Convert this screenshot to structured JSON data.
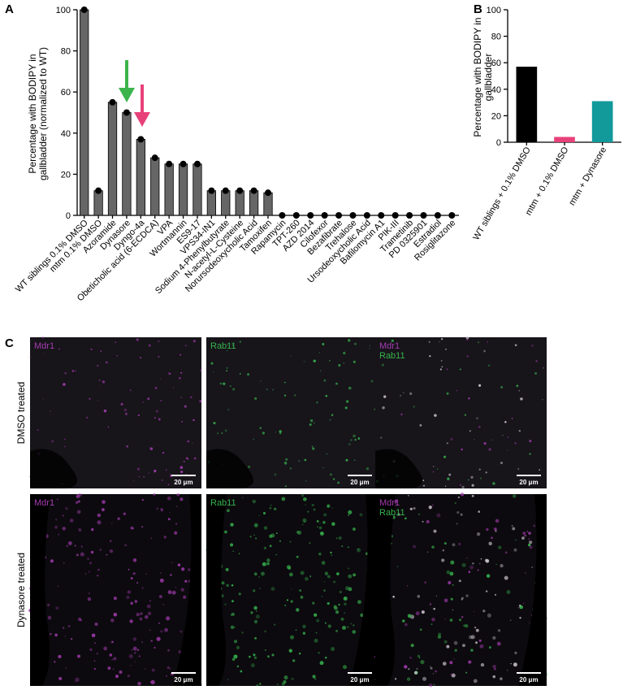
{
  "panel_labels": [
    "A",
    "B",
    "C"
  ],
  "chart_data": [
    {
      "type": "bar",
      "ylabel": [
        "Percentage with BODIPY in",
        "gallbladder (normalized to WT)"
      ],
      "categories": [
        "WT siblings 0.1% DMSO",
        "mtm 0.1% DMSO",
        "Azoramide",
        "Dynasore",
        "Dyngo-4a",
        "Obeticholic acid (6-ECDCA)",
        "VPA",
        "Wortmannin",
        "ES9-17",
        "VPS34-IN1",
        "Sodium 4-Phenylbutyrate",
        "N-acetyl-L-Cysteine",
        "Norursodeoxycholic Acid",
        "Tamoxifen",
        "Rapamycin",
        "TPT-260",
        "AZD 2014",
        "Cilofexor",
        "Bezafibrate",
        "Trehalose",
        "Ursodeoxycholic Acid",
        "Bafilomycin A1",
        "PIK-III",
        "Trametinib",
        "PD 0325901",
        "Estradiol",
        "Rosiglitazone"
      ],
      "values": [
        100,
        12,
        55,
        50,
        37,
        28,
        25,
        25,
        25,
        12,
        12,
        12,
        12,
        11,
        0,
        0,
        0,
        0,
        0,
        0,
        0,
        0,
        0,
        0,
        0,
        0,
        0
      ],
      "color": "#666666",
      "point_color": "#000000",
      "ylim": [
        0,
        100
      ],
      "yticks": [
        0,
        20,
        40,
        60,
        80,
        100
      ]
    },
    {
      "type": "bar",
      "ylabel": [
        "Percentage with BODIPY in",
        "gallbladder"
      ],
      "categories": [
        "WT siblings + 0.1% DMSO",
        "mtm + 0.1% DMSO",
        "mtm + Dynasore"
      ],
      "values": [
        57,
        4,
        31
      ],
      "colors": [
        "#000000",
        "#e8417a",
        "#12999a"
      ],
      "ylim": [
        0,
        100
      ],
      "yticks": [
        0,
        20,
        40,
        60,
        80,
        100
      ]
    }
  ],
  "panel_c": {
    "row_labels": [
      "DMSO treated",
      "Dynasore treated"
    ],
    "channels": [
      [
        "Mdr1"
      ],
      [
        "Rab11"
      ],
      [
        "Mdr1",
        "Rab11"
      ]
    ],
    "scale_bar": "20 μm"
  }
}
